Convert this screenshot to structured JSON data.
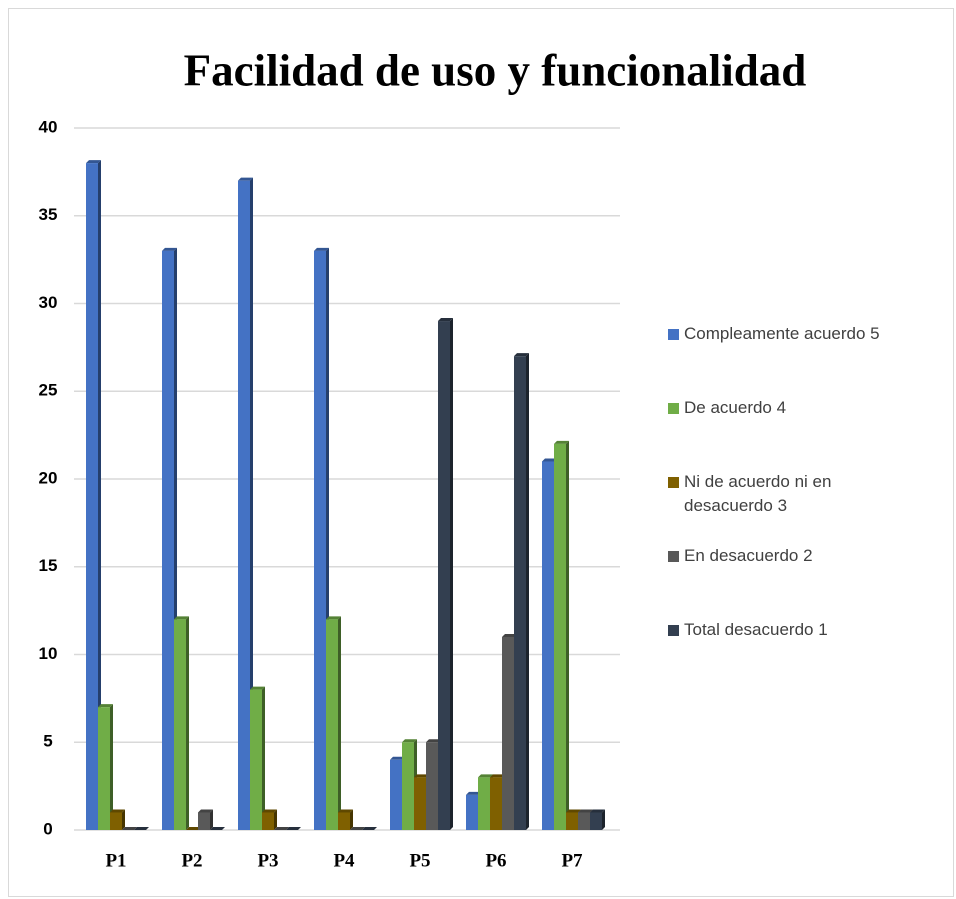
{
  "chart_data": {
    "type": "bar",
    "title": "Facilidad de uso y funcionalidad",
    "categories": [
      "P1",
      "P2",
      "P3",
      "P4",
      "P5",
      "P6",
      "P7"
    ],
    "series": [
      {
        "name": "Compleamente acuerdo 5",
        "color": "#4472c4",
        "values": [
          38,
          33,
          37,
          33,
          4,
          2,
          21
        ]
      },
      {
        "name": "De acuerdo 4",
        "color": "#70ad47",
        "values": [
          7,
          12,
          8,
          12,
          5,
          3,
          22
        ]
      },
      {
        "name": "Ni de acuerdo ni en desacuerdo 3",
        "color": "#7f6000",
        "values": [
          1,
          0,
          1,
          1,
          3,
          3,
          1
        ]
      },
      {
        "name": "En desacuerdo 2",
        "color": "#595959",
        "values": [
          0,
          1,
          0,
          0,
          5,
          11,
          1
        ]
      },
      {
        "name": "Total desacuerdo 1",
        "color": "#333f50",
        "values": [
          0,
          0,
          0,
          0,
          29,
          27,
          1
        ]
      }
    ],
    "ylim": [
      0,
      40
    ],
    "yticks": [
      0,
      5,
      10,
      15,
      20,
      25,
      30,
      35,
      40
    ],
    "grid": true,
    "legend": "right"
  }
}
